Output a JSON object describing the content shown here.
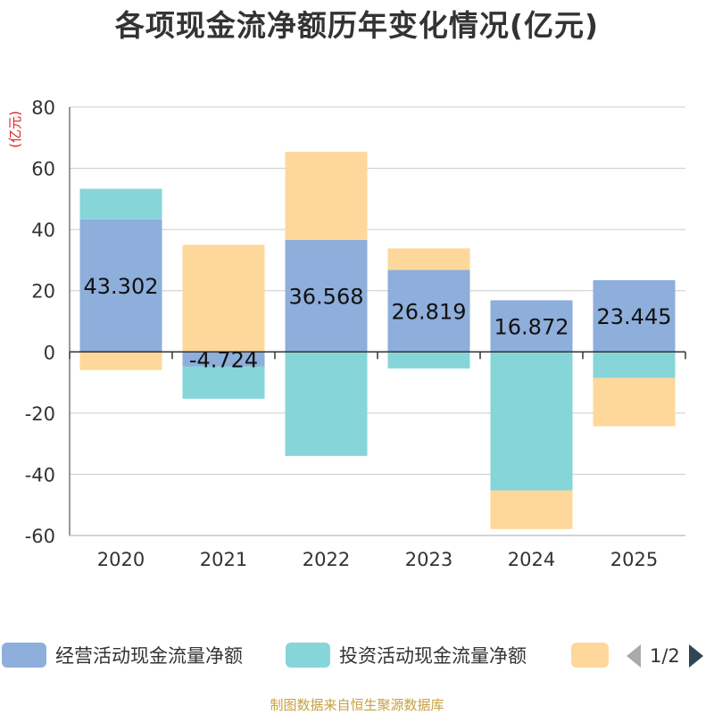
{
  "chart_data": {
    "type": "bar",
    "stacked": true,
    "title": "各项现金流净额历年变化情况(亿元)",
    "ylabel": "(亿元)",
    "xlabel": "",
    "categories": [
      "2020",
      "2021",
      "2022",
      "2023",
      "2024",
      "2025"
    ],
    "ylim": [
      -60,
      80
    ],
    "yticks": [
      80,
      60,
      40,
      20,
      0,
      -20,
      -40,
      -60
    ],
    "grid": true,
    "series": [
      {
        "name": "经营活动现金流量净额",
        "color": "#8eaedb",
        "values": [
          43.302,
          -4.724,
          36.568,
          26.819,
          16.872,
          23.445
        ],
        "labels": [
          "43.302",
          "-4.724",
          "36.568",
          "26.819",
          "16.872",
          "23.445"
        ]
      },
      {
        "name": "投资活动现金流量净额",
        "color": "#86d5d8",
        "values": [
          10.0,
          -10.6,
          -34.0,
          -5.4,
          -45.3,
          -8.5
        ]
      },
      {
        "name": "",
        "color": "#fdd89a",
        "values": [
          -5.9,
          35.0,
          28.8,
          7.0,
          -12.6,
          -15.8
        ]
      }
    ],
    "legend_position": "bottom"
  },
  "legend": {
    "items": [
      {
        "label": "经营活动现金流量净额",
        "color": "#8eaedb"
      },
      {
        "label": "投资活动现金流量净额",
        "color": "#86d5d8"
      },
      {
        "label": "",
        "color": "#fdd89a"
      }
    ],
    "pager": "1/2",
    "pager_prev_color": "#aaaaaa",
    "pager_next_color": "#2f4554"
  },
  "source_note": "制图数据来自恒生聚源数据库"
}
